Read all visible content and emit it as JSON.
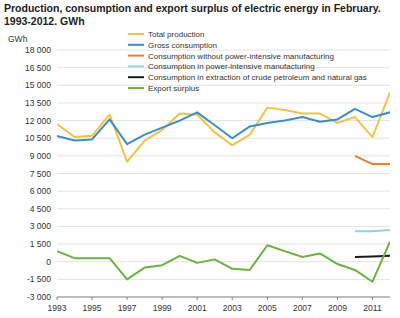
{
  "chart_data": {
    "type": "line",
    "title": "Production, consumption and export surplus of electric energy in February. 1993-2012. GWh",
    "y_label": "GWh",
    "x": [
      1993,
      1994,
      1995,
      1996,
      1997,
      1998,
      1999,
      2000,
      2001,
      2002,
      2003,
      2004,
      2005,
      2006,
      2007,
      2008,
      2009,
      2010,
      2011,
      2012
    ],
    "xlim": [
      1993,
      2012
    ],
    "xticks": [
      1993,
      1995,
      1997,
      1999,
      2001,
      2003,
      2005,
      2007,
      2009,
      2011
    ],
    "ylim": [
      -3000,
      18000
    ],
    "yticks": [
      {
        "value": -3000,
        "label": "-3 000"
      },
      {
        "value": -1500,
        "label": "-1 500"
      },
      0,
      {
        "value": 1500,
        "label": "1 500"
      },
      {
        "value": 3000,
        "label": "3 000"
      },
      {
        "value": 4500,
        "label": "4 500"
      },
      {
        "value": 6000,
        "label": "6 000"
      },
      {
        "value": 7500,
        "label": "7 500"
      },
      {
        "value": 9000,
        "label": "9 000"
      },
      {
        "value": 10500,
        "label": "10 500"
      },
      {
        "value": 12000,
        "label": "12 000"
      },
      {
        "value": 13500,
        "label": "13 500"
      },
      {
        "value": 15000,
        "label": "15 000"
      },
      {
        "value": 16500,
        "label": "16 500"
      },
      {
        "value": 18000,
        "label": "18 000"
      }
    ],
    "grid": true,
    "legend": "top-right",
    "series": [
      {
        "name": "Total production",
        "color": "#f5c242",
        "values": [
          11700,
          10600,
          10700,
          12500,
          8500,
          10300,
          11200,
          12600,
          12500,
          11000,
          9900,
          10800,
          13100,
          12900,
          12600,
          12600,
          11800,
          12300,
          10600,
          14400
        ]
      },
      {
        "name": "Gross consumption",
        "color": "#3a8fc9",
        "values": [
          10700,
          10300,
          10400,
          12100,
          10000,
          10800,
          11400,
          12000,
          12700,
          11600,
          10500,
          11500,
          11800,
          12000,
          12300,
          11900,
          12100,
          13000,
          12300,
          12700
        ]
      },
      {
        "name": "Consumption without power-intensive manufacturing",
        "color": "#f07d2a",
        "values": [
          null,
          null,
          null,
          null,
          null,
          null,
          null,
          null,
          null,
          null,
          null,
          null,
          null,
          null,
          null,
          null,
          null,
          9000,
          8300,
          8300
        ]
      },
      {
        "name": "Consumption in power-intensive manufacturing",
        "color": "#8fd3e8",
        "values": [
          null,
          null,
          null,
          null,
          null,
          null,
          null,
          null,
          null,
          null,
          null,
          null,
          null,
          null,
          null,
          null,
          null,
          2600,
          2600,
          2700
        ]
      },
      {
        "name": "Consumption in extraction of crude petroleum and natural gas",
        "color": "#1a1a1a",
        "values": [
          null,
          null,
          null,
          null,
          null,
          null,
          null,
          null,
          null,
          null,
          null,
          null,
          null,
          null,
          null,
          null,
          null,
          400,
          450,
          500
        ]
      },
      {
        "name": "Export surplus",
        "color": "#6cb33f",
        "values": [
          900,
          300,
          300,
          300,
          -1500,
          -500,
          -300,
          500,
          -100,
          200,
          -600,
          -700,
          1400,
          900,
          400,
          700,
          -200,
          -700,
          -1700,
          1700
        ]
      }
    ]
  }
}
